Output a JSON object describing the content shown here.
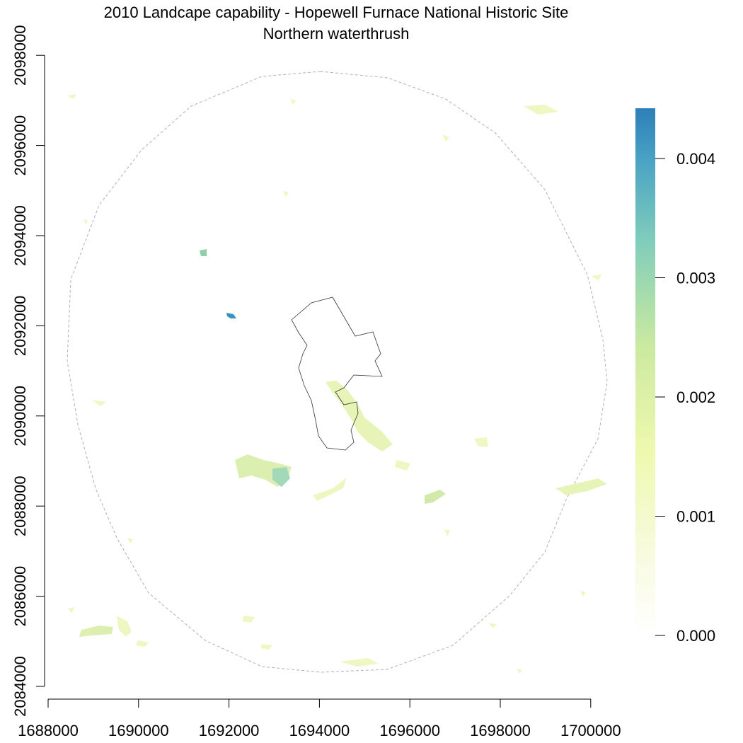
{
  "title": "2010 Landcape capability - Hopewell Furnace National Historic Site",
  "subtitle": "Northern waterthrush",
  "chart_data": {
    "type": "heatmap",
    "x_ticks": [
      "1688000",
      "1690000",
      "1692000",
      "1694000",
      "1696000",
      "1698000",
      "1700000"
    ],
    "y_ticks": [
      "2084000",
      "2086000",
      "2088000",
      "2090000",
      "2092000",
      "2094000",
      "2096000",
      "2098000"
    ],
    "legend": {
      "ticks": [
        "0.000",
        "0.001",
        "0.002",
        "0.003",
        "0.004"
      ],
      "colors": [
        "#ffffff",
        "#f7fbd6",
        "#eef9ae",
        "#cbe9a0",
        "#87d0b4",
        "#4fa9c2",
        "#2c7fb8"
      ]
    }
  }
}
